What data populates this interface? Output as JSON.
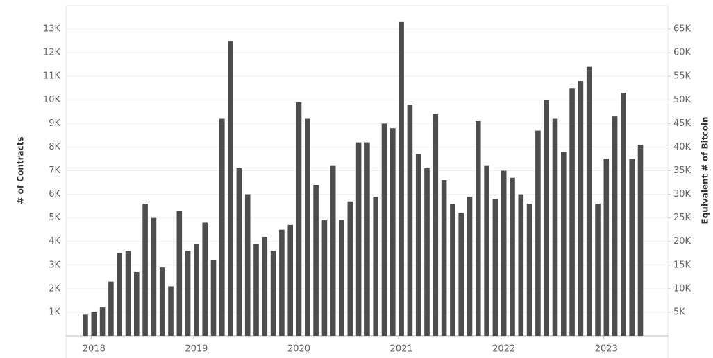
{
  "chart_data": {
    "type": "bar",
    "ylabel": "# of Contracts",
    "y2label": "Equivalent # of Bitcoin",
    "color": "#4d4d4d",
    "grid": true,
    "categories": [
      null,
      "2018",
      null,
      null,
      null,
      null,
      null,
      null,
      null,
      null,
      null,
      null,
      null,
      "2019",
      null,
      null,
      null,
      null,
      null,
      null,
      null,
      null,
      null,
      null,
      null,
      "2020",
      null,
      null,
      null,
      null,
      null,
      null,
      null,
      null,
      null,
      null,
      null,
      "2021",
      null,
      null,
      null,
      null,
      null,
      null,
      null,
      null,
      null,
      null,
      null,
      "2022",
      null,
      null,
      null,
      null,
      null,
      null,
      null,
      null,
      null,
      null,
      null,
      "2023",
      null,
      null,
      null,
      null
    ],
    "values": [
      900,
      1000,
      1200,
      2300,
      3500,
      3600,
      2700,
      5600,
      5000,
      2900,
      2100,
      5300,
      3600,
      3900,
      4800,
      3200,
      9200,
      12500,
      7100,
      6000,
      3900,
      4200,
      3600,
      4500,
      4700,
      9900,
      9200,
      6400,
      4900,
      7200,
      4900,
      5700,
      8200,
      8200,
      5900,
      9000,
      8800,
      13300,
      9800,
      7700,
      7100,
      9400,
      6600,
      5600,
      5200,
      5900,
      9100,
      7200,
      5800,
      7000,
      6700,
      6000,
      5600,
      8700,
      10000,
      9200,
      7800,
      10500,
      10800,
      11400,
      5600,
      7500,
      9300,
      10300,
      7500,
      8100
    ],
    "ylim": [
      0,
      14000
    ],
    "yticks": [
      {
        "value": 1000,
        "label": "1K"
      },
      {
        "value": 2000,
        "label": "2K"
      },
      {
        "value": 3000,
        "label": "3K"
      },
      {
        "value": 4000,
        "label": "4K"
      },
      {
        "value": 5000,
        "label": "5K"
      },
      {
        "value": 6000,
        "label": "6K"
      },
      {
        "value": 7000,
        "label": "7K"
      },
      {
        "value": 8000,
        "label": "8K"
      },
      {
        "value": 9000,
        "label": "9K"
      },
      {
        "value": 10000,
        "label": "10K"
      },
      {
        "value": 11000,
        "label": "11K"
      },
      {
        "value": 12000,
        "label": "12K"
      },
      {
        "value": 13000,
        "label": "13K"
      }
    ],
    "y2lim": [
      0,
      70000
    ],
    "y2ticks": [
      {
        "value": 5000,
        "label": "5K"
      },
      {
        "value": 10000,
        "label": "10K"
      },
      {
        "value": 15000,
        "label": "15K"
      },
      {
        "value": 20000,
        "label": "20K"
      },
      {
        "value": 25000,
        "label": "25K"
      },
      {
        "value": 30000,
        "label": "30K"
      },
      {
        "value": 35000,
        "label": "35K"
      },
      {
        "value": 40000,
        "label": "40K"
      },
      {
        "value": 45000,
        "label": "45K"
      },
      {
        "value": 50000,
        "label": "50K"
      },
      {
        "value": 55000,
        "label": "55K"
      },
      {
        "value": 60000,
        "label": "60K"
      },
      {
        "value": 65000,
        "label": "65K"
      }
    ]
  }
}
